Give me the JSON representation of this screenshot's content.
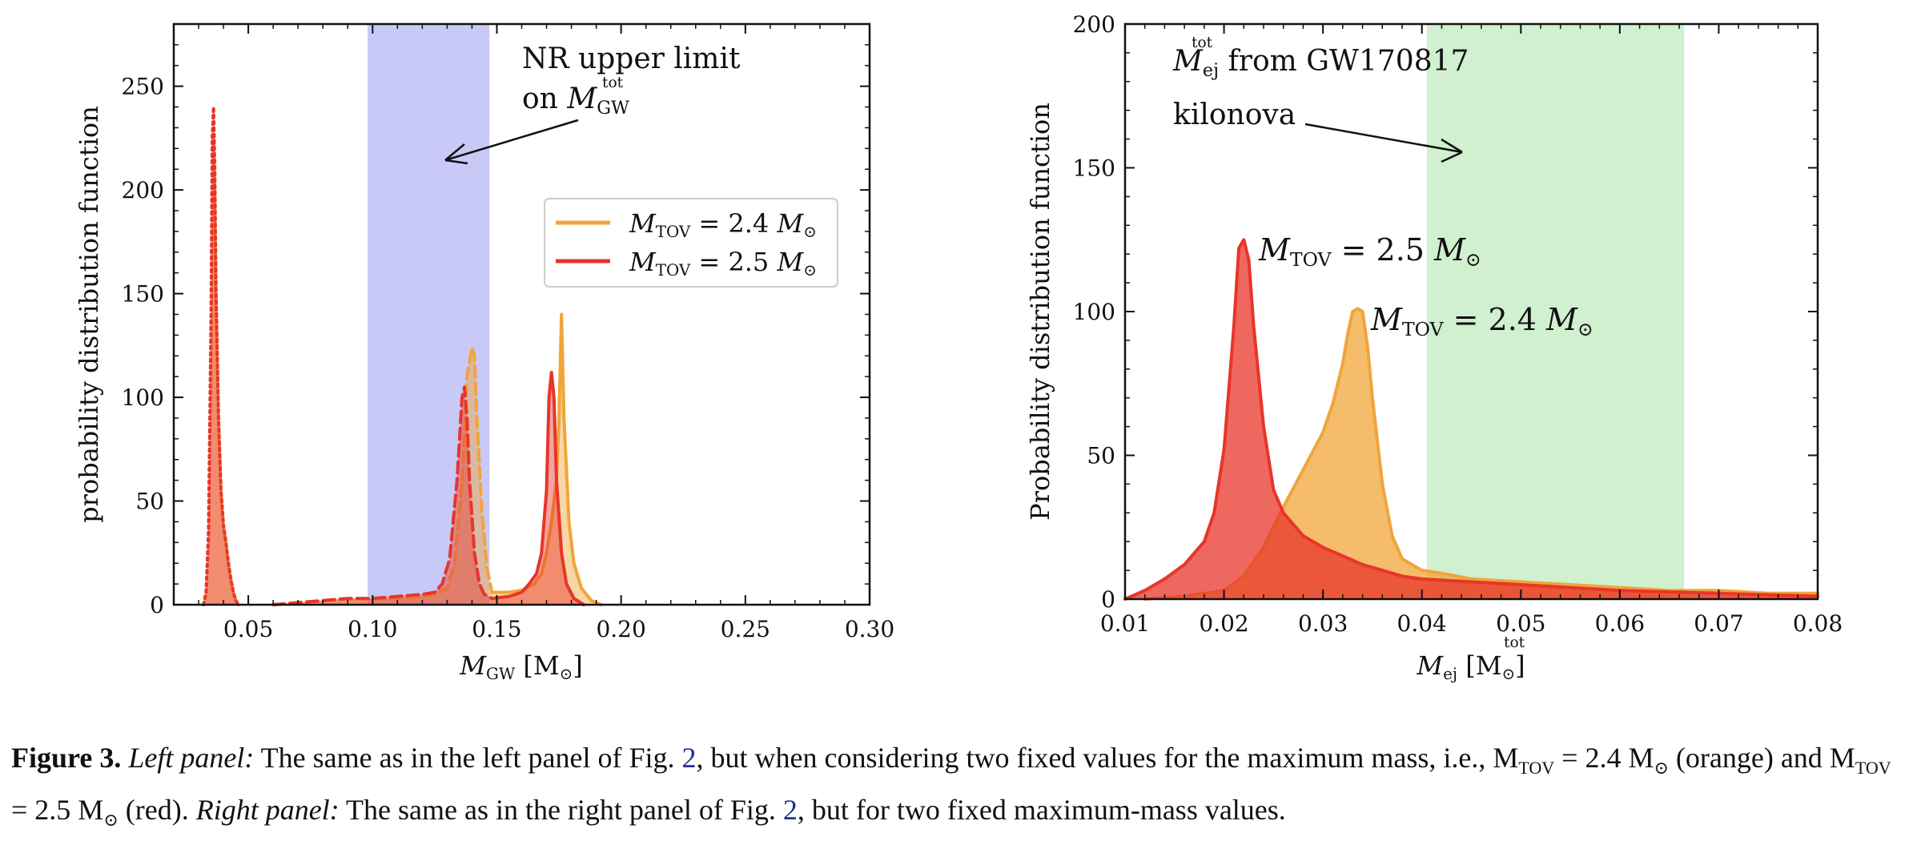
{
  "caption": {
    "fig_label": "Figure 3.",
    "left_label": "Left panel:",
    "text1": " The same as in the left panel of Fig. ",
    "ref": "2",
    "text2": ", but when considering two fixed values for the maximum mass, i.e., M",
    "sub_tov": "TOV",
    "text3": " = 2.4 M",
    "text4": " (orange) and M",
    "text5": " = 2.5 M",
    "text6": " (red). ",
    "right_label": "Right panel:",
    "text7": " The same as in the right panel of Fig. ",
    "text8": ", but for two fixed maximum-mass values."
  },
  "colors": {
    "orange": "#f0a53a",
    "red": "#e8352a",
    "blue_band": "#c9c9f7",
    "green_band": "#d0f0cf"
  },
  "chart_data": [
    {
      "type": "area",
      "title": "",
      "xlabel": "M_GW [M_⊙]",
      "ylabel": "probability distribution function",
      "xlim": [
        0.02,
        0.3
      ],
      "ylim": [
        0,
        280
      ],
      "xticks": [
        "0.05",
        "0.10",
        "0.15",
        "0.20",
        "0.25",
        "0.30"
      ],
      "yticks": [
        "0",
        "50",
        "100",
        "150",
        "200",
        "250"
      ],
      "band": {
        "x0": 0.098,
        "x1": 0.147,
        "color": "#c9c9f7"
      },
      "annotation": {
        "line1": "NR upper limit",
        "line2": "on M",
        "sup": "tot",
        "sub": "GW"
      },
      "legend": {
        "position": "center-right",
        "entries": [
          "M_TOV = 2.4 M_⊙",
          "M_TOV = 2.5 M_⊙"
        ]
      },
      "series": [
        {
          "name": "M_TOV = 2.4 M_⊙",
          "color": "#f0a53a",
          "segments": [
            {
              "style": "dotted",
              "x": [
                0.032,
                0.033,
                0.034,
                0.035,
                0.0355,
                0.036,
                0.0365,
                0.037,
                0.038,
                0.039,
                0.04,
                0.041,
                0.042,
                0.043,
                0.044,
                0.045,
                0.046
              ],
              "y": [
                0,
                5,
                30,
                120,
                210,
                225,
                200,
                150,
                90,
                55,
                38,
                30,
                20,
                12,
                6,
                2,
                0
              ]
            },
            {
              "style": "dashed",
              "x": [
                0.06,
                0.07,
                0.08,
                0.09,
                0.1,
                0.11,
                0.12,
                0.125,
                0.13,
                0.133,
                0.136,
                0.138,
                0.14,
                0.141,
                0.142,
                0.144,
                0.146,
                0.148
              ],
              "y": [
                0,
                1,
                2,
                3,
                3,
                3,
                4,
                5,
                8,
                20,
                60,
                110,
                124,
                120,
                90,
                45,
                18,
                6
              ]
            },
            {
              "style": "solid",
              "x": [
                0.148,
                0.155,
                0.16,
                0.165,
                0.168,
                0.17,
                0.172,
                0.174,
                0.175,
                0.176,
                0.177,
                0.179,
                0.181,
                0.184,
                0.188,
                0.192
              ],
              "y": [
                6,
                6,
                7,
                10,
                15,
                25,
                40,
                60,
                90,
                140,
                90,
                40,
                20,
                8,
                2,
                0
              ]
            }
          ]
        },
        {
          "name": "M_TOV = 2.5 M_⊙",
          "color": "#e8352a",
          "segments": [
            {
              "style": "dotted",
              "x": [
                0.032,
                0.033,
                0.034,
                0.035,
                0.0355,
                0.036,
                0.0365,
                0.037,
                0.038,
                0.039,
                0.04,
                0.041,
                0.042,
                0.043,
                0.044,
                0.045,
                0.046
              ],
              "y": [
                0,
                6,
                35,
                140,
                225,
                240,
                210,
                150,
                90,
                55,
                38,
                30,
                20,
                12,
                6,
                2,
                0
              ]
            },
            {
              "style": "dashed",
              "x": [
                0.06,
                0.07,
                0.08,
                0.09,
                0.1,
                0.11,
                0.12,
                0.125,
                0.128,
                0.131,
                0.134,
                0.136,
                0.137,
                0.138,
                0.139,
                0.141,
                0.143,
                0.145,
                0.148
              ],
              "y": [
                0,
                1,
                2,
                3,
                3,
                4,
                5,
                6,
                10,
                22,
                60,
                100,
                105,
                90,
                60,
                25,
                10,
                5,
                3
              ]
            },
            {
              "style": "solid",
              "x": [
                0.148,
                0.155,
                0.16,
                0.163,
                0.166,
                0.168,
                0.17,
                0.171,
                0.172,
                0.173,
                0.174,
                0.176,
                0.178,
                0.181,
                0.185
              ],
              "y": [
                3,
                4,
                6,
                10,
                15,
                25,
                55,
                100,
                112,
                100,
                60,
                25,
                10,
                3,
                0
              ]
            }
          ]
        }
      ]
    },
    {
      "type": "area",
      "title": "",
      "xlabel": "M_ej^tot [M_⊙]",
      "ylabel": "Probability distribution function",
      "xlim": [
        0.01,
        0.08
      ],
      "ylim": [
        0,
        200
      ],
      "xticks": [
        "0.01",
        "0.02",
        "0.03",
        "0.04",
        "0.05",
        "0.06",
        "0.07",
        "0.08"
      ],
      "yticks": [
        "0",
        "50",
        "100",
        "150",
        "200"
      ],
      "band": {
        "x0": 0.0405,
        "x1": 0.0665,
        "color": "#d0f0cf"
      },
      "annotation": {
        "line1_sym": "M",
        "line1_sup": "tot",
        "line1_sub": "ej",
        "line1_rest": " from GW170817",
        "line2": "kilonova"
      },
      "labels": [
        {
          "text": "M",
          "sub": "TOV",
          "rest": " = 2.5 M",
          "series": "red"
        },
        {
          "text": "M",
          "sub": "TOV",
          "rest": " = 2.4 M",
          "series": "orange"
        }
      ],
      "series": [
        {
          "name": "M_TOV = 2.5 M_⊙",
          "color": "#e8352a",
          "x": [
            0.01,
            0.012,
            0.014,
            0.016,
            0.018,
            0.019,
            0.02,
            0.021,
            0.0215,
            0.022,
            0.0225,
            0.023,
            0.024,
            0.025,
            0.026,
            0.027,
            0.028,
            0.03,
            0.032,
            0.034,
            0.036,
            0.038,
            0.04,
            0.045,
            0.05,
            0.055,
            0.06,
            0.065,
            0.07,
            0.075,
            0.08
          ],
          "y": [
            0,
            3,
            7,
            12,
            20,
            30,
            52,
            95,
            122,
            125,
            118,
            95,
            60,
            38,
            30,
            26,
            22,
            18,
            15,
            12,
            10,
            8,
            7,
            6,
            5,
            4,
            3,
            2.5,
            2,
            1.5,
            1
          ]
        },
        {
          "name": "M_TOV = 2.4 M_⊙",
          "color": "#f0a53a",
          "x": [
            0.012,
            0.016,
            0.02,
            0.022,
            0.024,
            0.026,
            0.028,
            0.03,
            0.031,
            0.032,
            0.0325,
            0.033,
            0.0335,
            0.034,
            0.0345,
            0.035,
            0.036,
            0.037,
            0.038,
            0.04,
            0.042,
            0.045,
            0.05,
            0.055,
            0.06,
            0.065,
            0.07,
            0.075,
            0.08
          ],
          "y": [
            0,
            1,
            3,
            8,
            18,
            32,
            45,
            58,
            68,
            82,
            92,
            100,
            101,
            100,
            88,
            70,
            40,
            22,
            14,
            10,
            9,
            7,
            6,
            5,
            4,
            3,
            3,
            2,
            2
          ]
        }
      ]
    }
  ]
}
